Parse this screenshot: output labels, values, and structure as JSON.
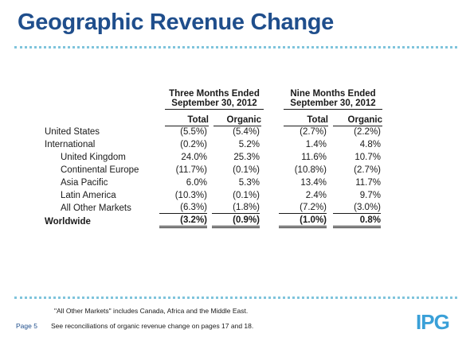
{
  "title": "Geographic Revenue Change",
  "period_headers": [
    {
      "line1": "Three Months Ended",
      "line2": "September 30, 2012"
    },
    {
      "line1": "Nine Months Ended",
      "line2": "September 30, 2012"
    }
  ],
  "column_headers": [
    "Total",
    "Organic",
    "Total",
    "Organic"
  ],
  "rows": [
    {
      "label": "United States",
      "values": [
        "(5.5%)",
        "(5.4%)",
        "(2.7%)",
        "(2.2%)"
      ]
    },
    {
      "label": "International",
      "values": [
        "(0.2%)",
        "5.2%",
        "1.4%",
        "4.8%"
      ]
    },
    {
      "label": "United Kingdom",
      "values": [
        "24.0%",
        "25.3%",
        "11.6%",
        "10.7%"
      ]
    },
    {
      "label": "Continental Europe",
      "values": [
        "(11.7%)",
        "(0.1%)",
        "(10.8%)",
        "(2.7%)"
      ]
    },
    {
      "label": "Asia Pacific",
      "values": [
        "6.0%",
        "5.3%",
        "13.4%",
        "11.7%"
      ]
    },
    {
      "label": "Latin America",
      "values": [
        "(10.3%)",
        "(0.1%)",
        "2.4%",
        "9.7%"
      ]
    },
    {
      "label": "All Other Markets",
      "values": [
        "(6.3%)",
        "(1.8%)",
        "(7.2%)",
        "(3.0%)"
      ]
    },
    {
      "label": "Worldwide",
      "values": [
        "(3.2%)",
        "(0.9%)",
        "(1.0%)",
        "0.8%"
      ]
    }
  ],
  "footnotes": [
    "\"All Other Markets\" includes Canada, Africa and the Middle East.",
    "See reconciliations of organic revenue change on pages 17 and 18."
  ],
  "page_label": "Page 5",
  "logo_text": "IPG",
  "colors": {
    "title": "#1f4e8c",
    "dots": "#7fc4dc",
    "logo": "#3aa0d8"
  }
}
